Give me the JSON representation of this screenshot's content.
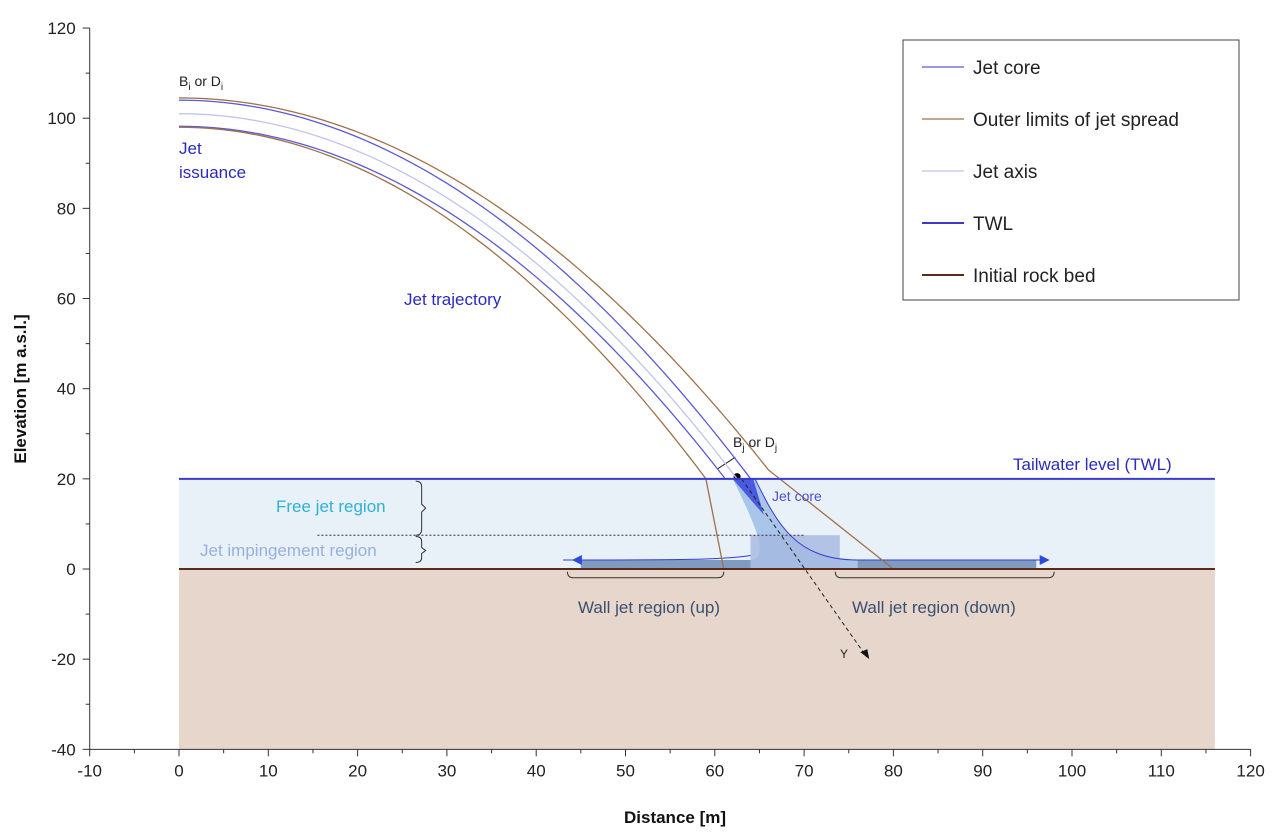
{
  "chart_data": {
    "type": "line",
    "xlabel": "Distance [m]",
    "ylabel": "Elevation [m a.s.l.]",
    "xlim": [
      -10,
      120
    ],
    "ylim": [
      -40,
      120
    ],
    "xticks": [
      -10,
      0,
      10,
      20,
      30,
      40,
      50,
      60,
      70,
      80,
      90,
      100,
      110,
      120
    ],
    "yticks": [
      -40,
      -20,
      0,
      20,
      40,
      60,
      80,
      100,
      120
    ],
    "legend_position": "top-right",
    "legend": [
      {
        "label": "Jet core",
        "color": "#5a5ad8",
        "kind": "thin"
      },
      {
        "label": "Outer limits of jet spread",
        "color": "#a0704a",
        "kind": "thin"
      },
      {
        "label": "Jet axis",
        "color": "#c0c4ec",
        "kind": "thin"
      },
      {
        "label": "TWL",
        "color": "#3a3ad0",
        "kind": "thick"
      },
      {
        "label": "Initial rock bed",
        "color": "#5a2a1a",
        "kind": "thick"
      }
    ],
    "series": [
      {
        "name": "Jet core (upper)",
        "color": "#5a5ad8",
        "y0": 104,
        "curvature": 0.0205,
        "x_end": 64
      },
      {
        "name": "Jet core (lower)",
        "color": "#5a5ad8",
        "y0": 98.2,
        "curvature": 0.0209,
        "x_end": 61.1
      },
      {
        "name": "Jet axis",
        "color": "#c0c4ec",
        "y0": 101,
        "curvature": 0.02074,
        "x_end": 62.5
      },
      {
        "name": "Outer limit (upper)",
        "color": "#a0704a",
        "y0": 104.5,
        "curvature": 0.01894,
        "x_end": 66,
        "tail": [
          80,
          0
        ]
      },
      {
        "name": "Outer limit (lower)",
        "color": "#a0704a",
        "y0": 98,
        "curvature": 0.0224,
        "x_end": 59,
        "tail": [
          61,
          0
        ]
      }
    ],
    "twl": 20,
    "rock_bed": 0,
    "domain_x": [
      0,
      116
    ],
    "annotations": {
      "issuance_width": "B",
      "issuance_sub": "i",
      "issuance_or": " or D",
      "jet_issuance_1": "Jet",
      "jet_issuance_2": "issuance",
      "jet_trajectory": "Jet trajectory",
      "impact_width": "B",
      "impact_sub": "j",
      "impact_or": " or D",
      "tailwater": "Tailwater level (TWL)",
      "jet_core": "Jet core",
      "free_jet": "Free jet region",
      "impingement": "Jet impingement region",
      "wall_up": "Wall jet region (up)",
      "wall_down": "Wall jet region (down)",
      "y_axis_label": "Y"
    }
  }
}
